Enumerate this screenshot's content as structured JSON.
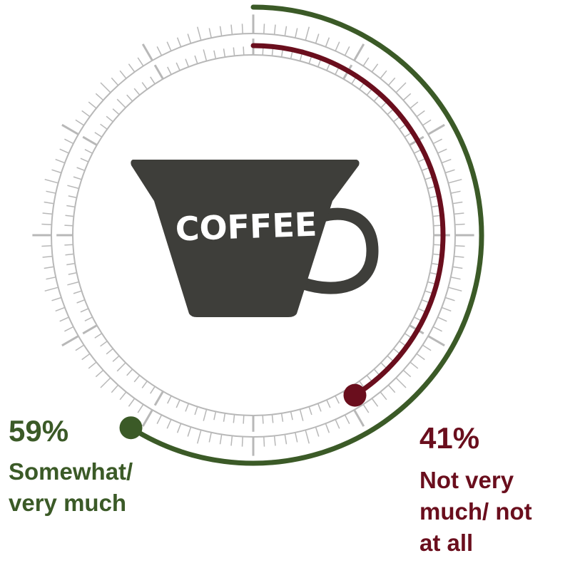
{
  "chart_data": {
    "type": "radial-bar",
    "title": "",
    "series": [
      {
        "label": "Somewhat/\nvery much",
        "percent": "59%",
        "value": 59,
        "color": "#3b5a27"
      },
      {
        "label": "Not very\nmuch/ not\nat all",
        "percent": "41%",
        "value": 41,
        "color": "#6a0e1d"
      }
    ],
    "center_icon": {
      "name": "coffee-cup-icon",
      "text": "COFFEE",
      "color": "#3e3e3a"
    },
    "dial_color": "#b8b8b8"
  }
}
